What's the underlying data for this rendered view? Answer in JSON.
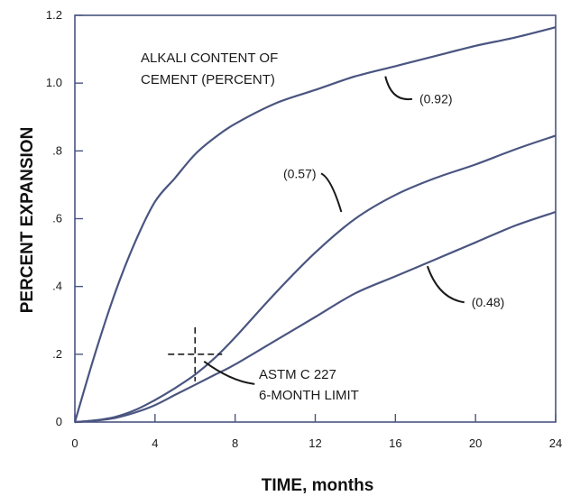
{
  "chart_data": {
    "type": "line",
    "title": "",
    "xlabel": "TIME, months",
    "ylabel": "PERCENT EXPANSION",
    "xlim": [
      0,
      24
    ],
    "ylim": [
      0,
      1.2
    ],
    "x_ticks": [
      {
        "value": 0,
        "label": "0"
      },
      {
        "value": 4,
        "label": "4"
      },
      {
        "value": 8,
        "label": "8"
      },
      {
        "value": 12,
        "label": "12"
      },
      {
        "value": 16,
        "label": "16"
      },
      {
        "value": 20,
        "label": "20"
      },
      {
        "value": 24,
        "label": "24"
      }
    ],
    "y_ticks": [
      {
        "value": 0,
        "label": "0"
      },
      {
        "value": 0.2,
        "label": ".2"
      },
      {
        "value": 0.4,
        "label": ".4"
      },
      {
        "value": 0.6,
        "label": ".6"
      },
      {
        "value": 0.8,
        "label": ".8"
      },
      {
        "value": 1.0,
        "label": "1.0"
      },
      {
        "value": 1.2,
        "label": "1.2"
      }
    ],
    "grid": false,
    "line_color": "#4a5580",
    "series": [
      {
        "name": "(0.92)",
        "x": [
          0,
          1,
          2,
          3,
          4,
          5,
          6,
          7,
          8,
          10,
          12,
          14,
          16,
          18,
          20,
          22,
          24
        ],
        "y": [
          0,
          0.2,
          0.38,
          0.53,
          0.65,
          0.72,
          0.79,
          0.84,
          0.88,
          0.94,
          0.98,
          1.02,
          1.05,
          1.08,
          1.11,
          1.135,
          1.165
        ]
      },
      {
        "name": "(0.57)",
        "x": [
          0,
          1,
          2,
          3,
          4,
          5,
          6,
          7,
          8,
          10,
          12,
          14,
          16,
          18,
          20,
          22,
          24
        ],
        "y": [
          0,
          0.005,
          0.015,
          0.035,
          0.065,
          0.1,
          0.14,
          0.19,
          0.25,
          0.38,
          0.5,
          0.6,
          0.67,
          0.72,
          0.76,
          0.805,
          0.845
        ]
      },
      {
        "name": "(0.48)",
        "x": [
          0,
          1,
          2,
          3,
          4,
          5,
          6,
          7,
          8,
          10,
          12,
          14,
          16,
          18,
          20,
          22,
          24
        ],
        "y": [
          0,
          0.004,
          0.012,
          0.028,
          0.05,
          0.08,
          0.11,
          0.14,
          0.17,
          0.24,
          0.31,
          0.38,
          0.43,
          0.48,
          0.53,
          0.58,
          0.62
        ]
      }
    ],
    "series_label_leaders": [
      {
        "series": 0,
        "from_x": 15.5,
        "from_y": 1.02,
        "label_x": 17.2,
        "label_y": 0.94
      },
      {
        "series": 1,
        "from_x": 13.3,
        "from_y": 0.62,
        "label_x": 10.4,
        "label_y": 0.72
      },
      {
        "series": 2,
        "from_x": 17.6,
        "from_y": 0.46,
        "label_x": 19.8,
        "label_y": 0.34
      }
    ],
    "annotations": {
      "legend_title_line1": "ALKALI CONTENT OF",
      "legend_title_line2": "CEMENT (PERCENT)",
      "limit_line1": "ASTM C 227",
      "limit_line2": "6-MONTH LIMIT",
      "limit_x": 6,
      "limit_y": 0.2
    }
  }
}
